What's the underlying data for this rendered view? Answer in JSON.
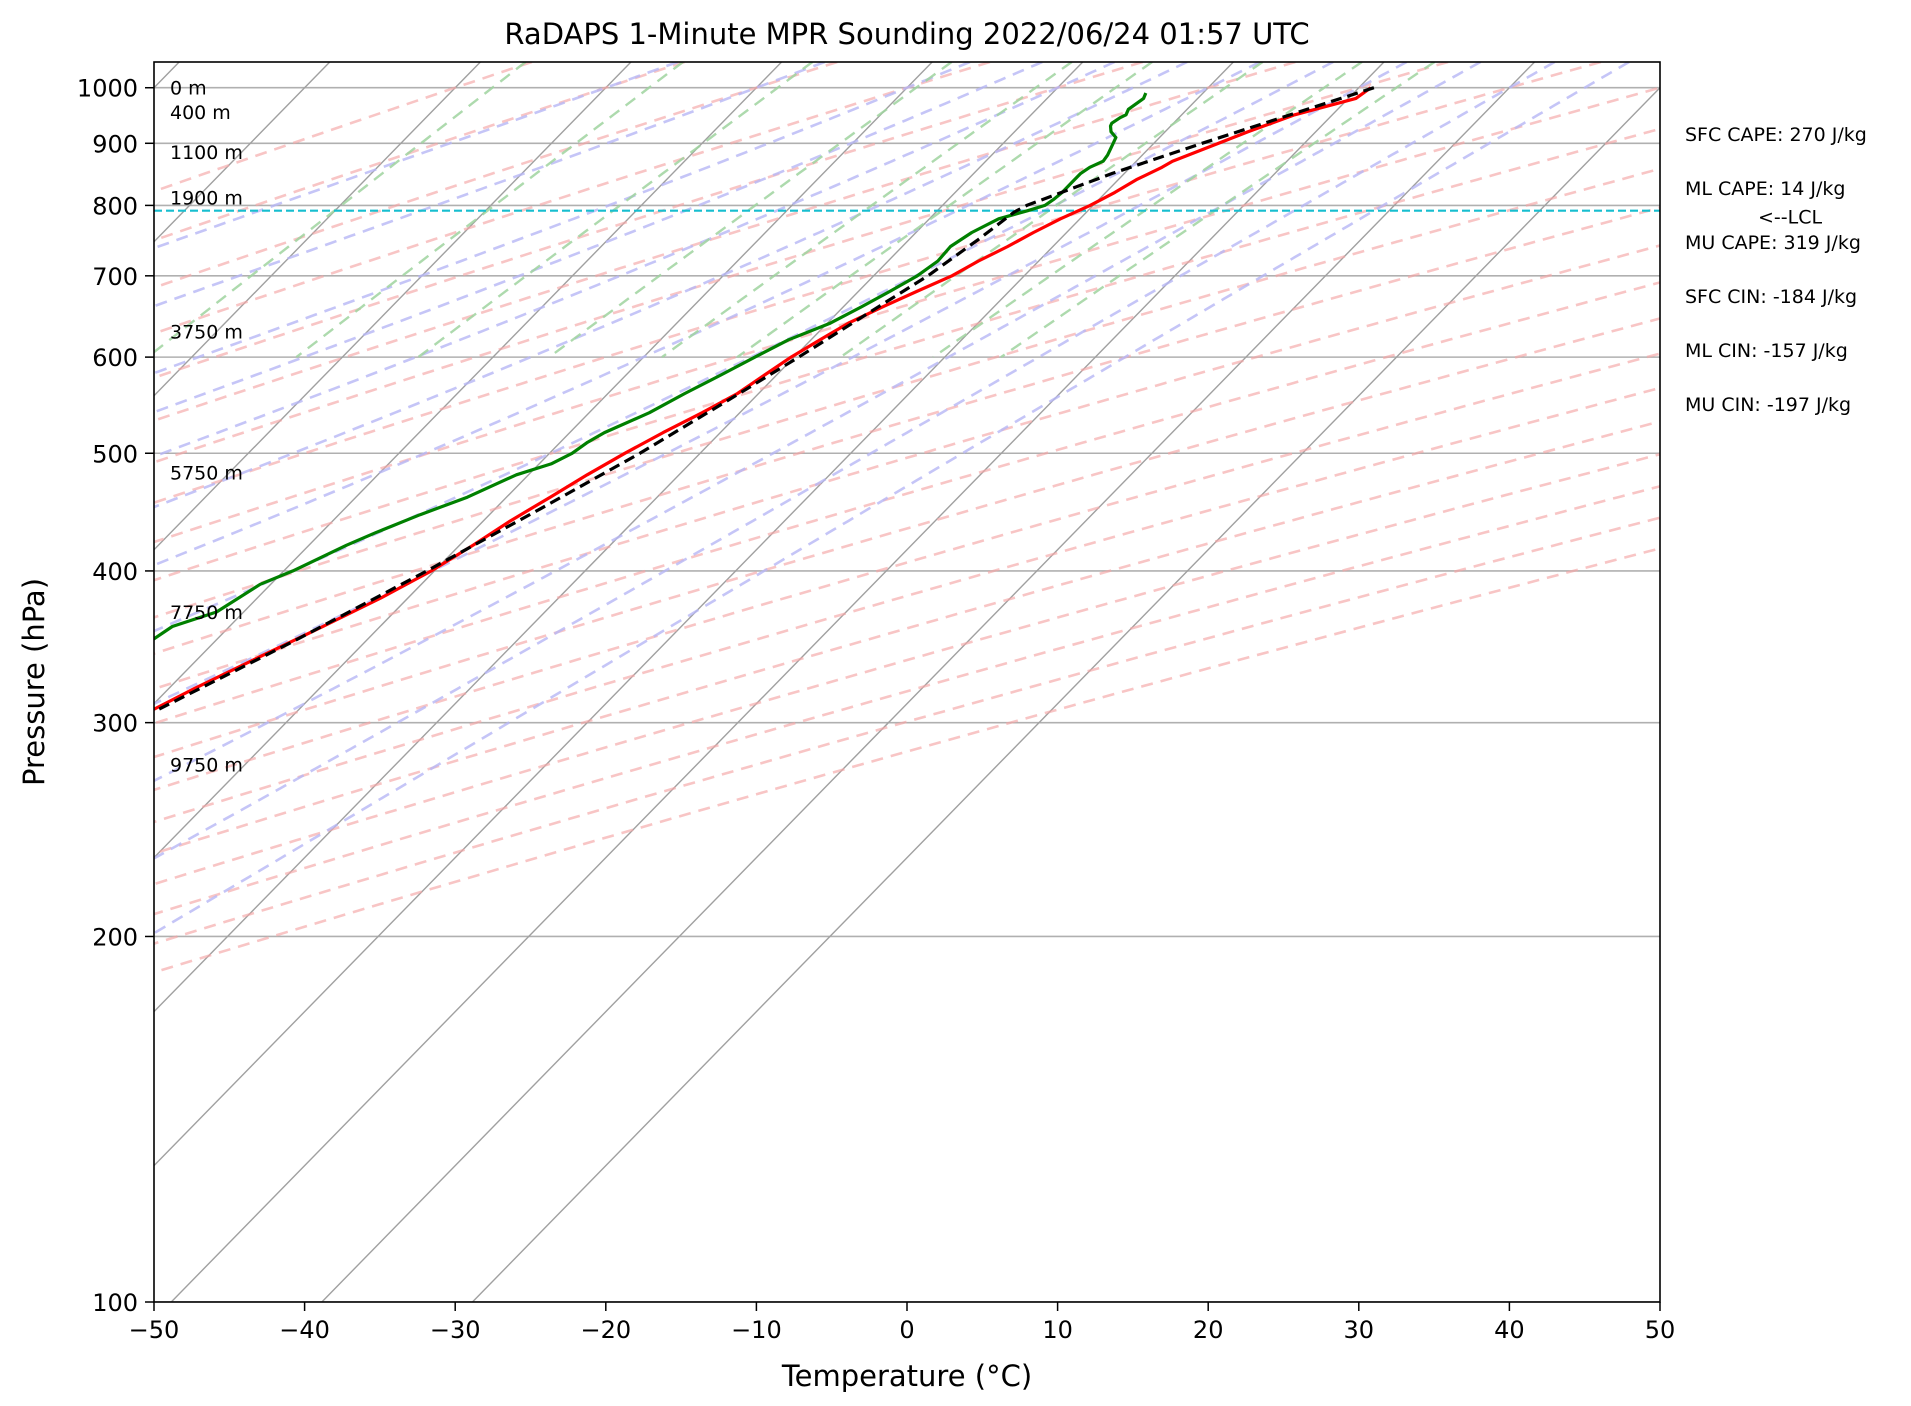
{
  "chart_data": {
    "type": "line",
    "chart_kind": "skew-t log-p sounding",
    "title": "RaDAPS 1-Minute MPR Sounding 2022/06/24 01:57 UTC",
    "xlabel": "Temperature (°C)",
    "ylabel": "Pressure (hPa)",
    "xlim": [
      -50,
      50
    ],
    "ylim": [
      1050,
      100
    ],
    "y_scale": "log",
    "x_ticks": [
      -50,
      -40,
      -30,
      -20,
      -10,
      0,
      10,
      20,
      30,
      40,
      50
    ],
    "x_tick_labels": [
      "−50",
      "−40",
      "−30",
      "−20",
      "−10",
      "0",
      "10",
      "20",
      "30",
      "40",
      "50"
    ],
    "y_ticks": [
      1000,
      900,
      800,
      700,
      600,
      500,
      400,
      300,
      200,
      100
    ],
    "y_tick_labels": [
      "1000",
      "900",
      "800",
      "700",
      "600",
      "500",
      "400",
      "300",
      "200",
      "100"
    ],
    "grid": true,
    "colors": {
      "temperature": "#ff0000",
      "dewpoint": "#008000",
      "parcel": "#000000",
      "lcl": "#17becf",
      "dry_adiabats": "#f4a6a6",
      "moist_adiabats": "#b7b7f5",
      "mixing_ratio": "#9fd39f",
      "isotherms": "#a0a0a0"
    },
    "series": [
      {
        "role": "temperature",
        "points": [
          [
            1000,
            30.8
          ],
          [
            980,
            30.5
          ],
          [
            950,
            27.5
          ],
          [
            920,
            25.5
          ],
          [
            900,
            24.3
          ],
          [
            870,
            22.4
          ],
          [
            860,
            22.1
          ],
          [
            840,
            21.2
          ],
          [
            820,
            20.6
          ],
          [
            800,
            19.8
          ],
          [
            780,
            18.7
          ],
          [
            760,
            17.8
          ],
          [
            740,
            17.0
          ],
          [
            720,
            16.0
          ],
          [
            700,
            15.2
          ],
          [
            680,
            13.9
          ],
          [
            660,
            12.6
          ],
          [
            640,
            11.4
          ],
          [
            620,
            10.6
          ],
          [
            600,
            9.8
          ],
          [
            580,
            9.2
          ],
          [
            560,
            8.6
          ],
          [
            540,
            7.5
          ],
          [
            520,
            6.2
          ],
          [
            500,
            5.0
          ],
          [
            480,
            3.9
          ],
          [
            460,
            2.9
          ],
          [
            440,
            1.8
          ],
          [
            420,
            0.9
          ],
          [
            400,
            -0.2
          ],
          [
            380,
            -1.8
          ],
          [
            360,
            -3.8
          ],
          [
            340,
            -6.0
          ],
          [
            320,
            -8.3
          ],
          [
            300,
            -10.5
          ],
          [
            290,
            -11.6
          ],
          [
            280,
            -12.7
          ],
          [
            270,
            -13.8
          ],
          [
            262,
            -14.7
          ]
        ]
      },
      {
        "role": "dewpoint",
        "points": [
          [
            990,
            16.2
          ],
          [
            980,
            16.4
          ],
          [
            960,
            16.1
          ],
          [
            950,
            16.3
          ],
          [
            945,
            16.1
          ],
          [
            935,
            15.9
          ],
          [
            930,
            16.0
          ],
          [
            920,
            16.4
          ],
          [
            910,
            17.1
          ],
          [
            890,
            17.5
          ],
          [
            880,
            17.7
          ],
          [
            870,
            17.8
          ],
          [
            860,
            17.3
          ],
          [
            850,
            17.1
          ],
          [
            835,
            17.1
          ],
          [
            820,
            17.1
          ],
          [
            810,
            17.0
          ],
          [
            800,
            16.8
          ],
          [
            792,
            16.0
          ],
          [
            780,
            14.6
          ],
          [
            760,
            13.7
          ],
          [
            740,
            13.2
          ],
          [
            720,
            13.3
          ],
          [
            700,
            12.9
          ],
          [
            680,
            12.1
          ],
          [
            660,
            11.2
          ],
          [
            640,
            10.2
          ],
          [
            620,
            8.5
          ],
          [
            600,
            7.4
          ],
          [
            580,
            6.3
          ],
          [
            560,
            5.1
          ],
          [
            540,
            4.0
          ],
          [
            520,
            2.3
          ],
          [
            510,
            1.8
          ],
          [
            500,
            1.5
          ],
          [
            490,
            0.8
          ],
          [
            480,
            -0.8
          ],
          [
            460,
            -2.6
          ],
          [
            445,
            -4.6
          ],
          [
            430,
            -6.4
          ],
          [
            420,
            -7.5
          ],
          [
            400,
            -9.4
          ],
          [
            390,
            -10.7
          ],
          [
            370,
            -11.8
          ],
          [
            360,
            -13.8
          ],
          [
            340,
            -14.8
          ],
          [
            330,
            -15.8
          ],
          [
            320,
            -17.0
          ],
          [
            310,
            -19.6
          ],
          [
            305,
            -23.5
          ],
          [
            295,
            -31.5
          ],
          [
            283,
            -33.9
          ],
          [
            277,
            -35.4
          ],
          [
            265,
            -39.5
          ],
          [
            261,
            -40.5
          ]
        ]
      },
      {
        "role": "parcel",
        "points": [
          [
            1000,
            31.0
          ],
          [
            980,
            29.5
          ],
          [
            950,
            27.2
          ],
          [
            900,
            23.2
          ],
          [
            850,
            19.2
          ],
          [
            800,
            15.6
          ],
          [
            790,
            15.2
          ],
          [
            750,
            14.6
          ],
          [
            700,
            13.6
          ],
          [
            650,
            12.0
          ],
          [
            600,
            10.3
          ],
          [
            550,
            8.3
          ],
          [
            500,
            6.0
          ],
          [
            450,
            3.0
          ],
          [
            400,
            -0.5
          ],
          [
            350,
            -4.8
          ],
          [
            300,
            -10.2
          ],
          [
            280,
            -12.8
          ],
          [
            262,
            -15.5
          ]
        ]
      }
    ],
    "lcl_pressure": 792,
    "lcl_label": "<--LCL",
    "height_labels": [
      {
        "text": "0 m",
        "pressure": 1000
      },
      {
        "text": "400 m",
        "pressure": 955
      },
      {
        "text": "1100 m",
        "pressure": 885
      },
      {
        "text": "1900 m",
        "pressure": 812
      },
      {
        "text": "3750 m",
        "pressure": 630
      },
      {
        "text": "5750 m",
        "pressure": 482
      },
      {
        "text": "7750 m",
        "pressure": 370
      },
      {
        "text": "9750 m",
        "pressure": 277
      }
    ],
    "dry_adiabat_thetas_c": [
      -30,
      -20,
      -10,
      0,
      10,
      20,
      30,
      40,
      50,
      60,
      70,
      80,
      90,
      100,
      110,
      120,
      130,
      140,
      150,
      160,
      170,
      180
    ],
    "moist_adiabat_thetaw_c": [
      -20,
      -10,
      0,
      5,
      10,
      15,
      20,
      25,
      30,
      35,
      40,
      45
    ],
    "mixing_ratios_gkg": [
      0.4,
      1,
      2,
      4,
      7,
      10,
      16,
      24,
      32
    ]
  },
  "stats": [
    "SFC CAPE: 270 J/kg",
    "ML CAPE: 14 J/kg",
    "MU CAPE: 319 J/kg",
    "SFC CIN: -184 J/kg",
    "ML CIN: -157 J/kg",
    "MU CIN: -197 J/kg"
  ]
}
